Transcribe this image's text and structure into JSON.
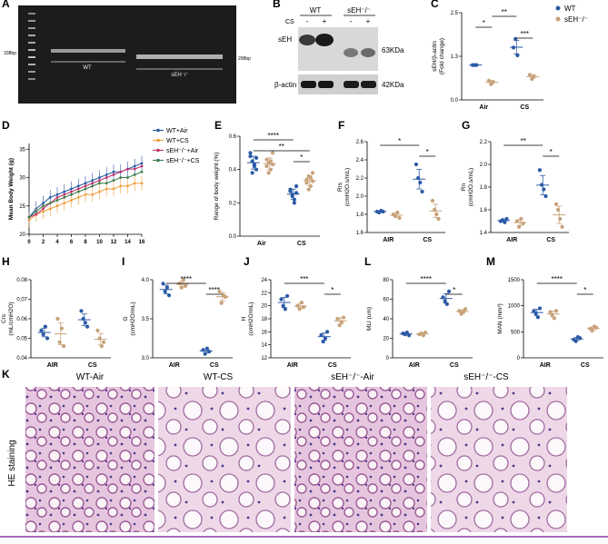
{
  "colors": {
    "wt": "#2b5aa6",
    "sEH": "#c8a27a",
    "wt_cs": "#f0a040",
    "sEH_air": "#c0306a",
    "sEH_cs": "#3a7a4a",
    "purple_rule": "#8a3aa0"
  },
  "panels": {
    "A": {
      "letter": "A",
      "left_label": "338bp",
      "right_label": "298bp",
      "lane1": "WT",
      "lane2": "sEH⁻/⁻"
    },
    "B": {
      "letter": "B",
      "group1": "WT",
      "group2": "sEH⁻/⁻",
      "cs_label": "CS",
      "signs": [
        "-",
        "+",
        "-",
        "+"
      ],
      "row1": "sEH",
      "row2": "β-actin",
      "kda1": "63KDa",
      "kda2": "42KDa"
    },
    "C": {
      "letter": "C"
    },
    "D": {
      "letter": "D"
    },
    "E": {
      "letter": "E"
    },
    "F": {
      "letter": "F"
    },
    "G": {
      "letter": "G"
    },
    "H": {
      "letter": "H"
    },
    "I": {
      "letter": "I"
    },
    "J": {
      "letter": "J"
    },
    "L": {
      "letter": "L"
    },
    "M": {
      "letter": "M"
    },
    "K": {
      "letter": "K",
      "titles": [
        "WT-Air",
        "WT-CS",
        "sEH⁻/⁻-Air",
        "sEH⁻/⁻-CS"
      ],
      "side": "HE staining"
    }
  },
  "chart_data": [
    {
      "id": "C",
      "type": "scatter",
      "ylabel": "sEH/β-actin\n(Fold change)",
      "categories": [
        "Air",
        "CS"
      ],
      "ylim": [
        0,
        2.5
      ],
      "legend": [
        "WT",
        "sEH⁻/⁻"
      ],
      "series": [
        {
          "name": "WT",
          "values": [
            [
              1.0,
              1.0,
              1.0
            ],
            [
              1.5,
              1.75,
              1.28
            ]
          ]
        },
        {
          "name": "sEH⁻/⁻",
          "values": [
            [
              0.55,
              0.45,
              0.52
            ],
            [
              0.72,
              0.6,
              0.68
            ]
          ]
        }
      ],
      "sig": [
        {
          "a": [
            0,
            1
          ],
          "b": [
            1,
            0
          ],
          "label": "**"
        },
        {
          "a": [
            0,
            0
          ],
          "b": [
            0,
            1
          ],
          "label": "*"
        },
        {
          "a": [
            1,
            0
          ],
          "b": [
            1,
            1
          ],
          "label": "***"
        }
      ]
    },
    {
      "id": "D",
      "type": "line",
      "ylabel": "Mean Body Weight (g)",
      "x": [
        0,
        1,
        2,
        3,
        4,
        5,
        6,
        7,
        8,
        9,
        10,
        11,
        12,
        13,
        14,
        15,
        16
      ],
      "xticks": [
        0,
        2,
        4,
        6,
        8,
        10,
        12,
        14,
        16
      ],
      "yticks": [
        20,
        25,
        30,
        35
      ],
      "ylim": [
        20,
        36
      ],
      "series": [
        {
          "name": "WT+Air",
          "values": [
            23,
            24.5,
            25.5,
            26.5,
            27,
            27.5,
            28,
            28.5,
            29,
            29.5,
            30,
            30.5,
            31,
            31,
            31.5,
            32,
            32.5
          ]
        },
        {
          "name": "WT+CS",
          "values": [
            22.5,
            23.5,
            24,
            24.5,
            25,
            25.5,
            26,
            26.5,
            27,
            27,
            27.5,
            28,
            28,
            28.5,
            28.5,
            29,
            29
          ]
        },
        {
          "name": "sEH⁻/⁻+Air",
          "values": [
            23,
            23.5,
            24.5,
            25.5,
            26.5,
            27,
            27.5,
            28,
            28.5,
            29,
            29.5,
            30,
            30.5,
            31,
            31.5,
            31.5,
            32
          ]
        },
        {
          "name": "sEH⁻/⁻+CS",
          "values": [
            23,
            24,
            25,
            25.5,
            26,
            26.5,
            27,
            27.5,
            28,
            28.5,
            29,
            29,
            29.5,
            30,
            30,
            30.5,
            31
          ]
        }
      ]
    },
    {
      "id": "E",
      "type": "scatter",
      "ylabel": "Range of body weight (%)",
      "categories": [
        "Air",
        "CS"
      ],
      "ylim": [
        0,
        0.6
      ],
      "yticks": [
        0,
        0.2,
        0.4,
        0.6
      ],
      "series": [
        {
          "name": "WT",
          "values": [
            [
              0.48,
              0.45,
              0.42,
              0.4,
              0.5,
              0.38,
              0.43,
              0.47
            ],
            [
              0.28,
              0.25,
              0.22,
              0.3,
              0.27,
              0.24,
              0.2,
              0.26
            ]
          ]
        },
        {
          "name": "sEH⁻/⁻",
          "values": [
            [
              0.46,
              0.44,
              0.4,
              0.5,
              0.42,
              0.38,
              0.45,
              0.43
            ],
            [
              0.32,
              0.36,
              0.3,
              0.38,
              0.34,
              0.28,
              0.35,
              0.33
            ]
          ]
        }
      ],
      "sig": [
        {
          "a": [
            0,
            0
          ],
          "b": [
            1,
            0
          ],
          "label": "****"
        },
        {
          "a": [
            0,
            0
          ],
          "b": [
            1,
            1
          ],
          "label": "**"
        },
        {
          "a": [
            1,
            0
          ],
          "b": [
            1,
            1
          ],
          "label": "*"
        }
      ]
    },
    {
      "id": "F",
      "type": "scatter",
      "ylabel": "Rrs\n(cmH2O.s/mL)",
      "categories": [
        "AIR",
        "CS"
      ],
      "ylim": [
        1.6,
        2.6
      ],
      "yticks": [
        1.6,
        1.8,
        2.0,
        2.2,
        2.4,
        2.6
      ],
      "series": [
        {
          "name": "WT",
          "values": [
            [
              1.83,
              1.82,
              1.84,
              1.83
            ],
            [
              2.35,
              2.2,
              2.15,
              2.05
            ]
          ]
        },
        {
          "name": "sEH⁻/⁻",
          "values": [
            [
              1.8,
              1.78,
              1.82,
              1.76
            ],
            [
              1.95,
              1.85,
              1.8,
              1.75
            ]
          ]
        }
      ],
      "sig": [
        {
          "a": [
            0,
            0
          ],
          "b": [
            1,
            0
          ],
          "label": "*"
        },
        {
          "a": [
            1,
            0
          ],
          "b": [
            1,
            1
          ],
          "label": "*"
        }
      ]
    },
    {
      "id": "G",
      "type": "scatter",
      "ylabel": "Rn\n(cmH2O.s/mL)",
      "categories": [
        "AIR",
        "CS"
      ],
      "ylim": [
        1.4,
        2.2
      ],
      "yticks": [
        1.4,
        1.6,
        1.8,
        2.0,
        2.2
      ],
      "series": [
        {
          "name": "WT",
          "values": [
            [
              1.5,
              1.51,
              1.49,
              1.52
            ],
            [
              1.95,
              1.82,
              1.78,
              1.72
            ]
          ]
        },
        {
          "name": "sEH⁻/⁻",
          "values": [
            [
              1.5,
              1.45,
              1.52,
              1.48
            ],
            [
              1.65,
              1.6,
              1.52,
              1.45
            ]
          ]
        }
      ],
      "sig": [
        {
          "a": [
            0,
            0
          ],
          "b": [
            1,
            0
          ],
          "label": "**"
        },
        {
          "a": [
            1,
            0
          ],
          "b": [
            1,
            1
          ],
          "label": "*"
        }
      ]
    },
    {
      "id": "H",
      "type": "scatter",
      "ylabel": "Crs\n(mL/cmH2O)",
      "categories": [
        "AIR",
        "CS"
      ],
      "ylim": [
        0.04,
        0.08
      ],
      "yticks": [
        0.04,
        0.05,
        0.06,
        0.07,
        0.08
      ],
      "series": [
        {
          "name": "WT",
          "values": [
            [
              0.054,
              0.052,
              0.056,
              0.05
            ],
            [
              0.064,
              0.06,
              0.058,
              0.056
            ]
          ]
        },
        {
          "name": "sEH⁻/⁻",
          "values": [
            [
              0.06,
              0.048,
              0.055,
              0.046
            ],
            [
              0.054,
              0.05,
              0.046,
              0.048
            ]
          ]
        }
      ]
    },
    {
      "id": "I",
      "type": "scatter",
      "ylabel": "G\n(cmH2O/mL)",
      "categories": [
        "AIR",
        "CS"
      ],
      "ylim": [
        3.0,
        4.0
      ],
      "yticks": [
        3.0,
        3.5,
        4.0
      ],
      "series": [
        {
          "name": "WT",
          "values": [
            [
              3.95,
              3.85,
              3.9,
              3.8
            ],
            [
              3.1,
              3.05,
              3.12,
              3.08
            ]
          ]
        },
        {
          "name": "sEH⁻/⁻",
          "values": [
            [
              3.95,
              3.9,
              4.0,
              3.92
            ],
            [
              3.85,
              3.7,
              3.8,
              3.78
            ]
          ]
        }
      ],
      "sig": [
        {
          "a": [
            0,
            0
          ],
          "b": [
            1,
            0
          ],
          "label": "****"
        },
        {
          "a": [
            1,
            0
          ],
          "b": [
            1,
            1
          ],
          "label": "****"
        }
      ]
    },
    {
      "id": "J",
      "type": "scatter",
      "ylabel": "H\n(cmH2O/mL)",
      "categories": [
        "AIR",
        "CS"
      ],
      "ylim": [
        12,
        24
      ],
      "yticks": [
        12,
        14,
        16,
        18,
        20,
        22,
        24
      ],
      "series": [
        {
          "name": "WT",
          "values": [
            [
              21,
              20,
              19.5,
              21.5
            ],
            [
              15.5,
              14.5,
              15,
              16
            ]
          ]
        },
        {
          "name": "sEH⁻/⁻",
          "values": [
            [
              20,
              19.5,
              20.5,
              19.8
            ],
            [
              18,
              17,
              17.5,
              18.2
            ]
          ]
        }
      ],
      "sig": [
        {
          "a": [
            0,
            0
          ],
          "b": [
            1,
            0
          ],
          "label": "***"
        },
        {
          "a": [
            1,
            0
          ],
          "b": [
            1,
            1
          ],
          "label": "*"
        }
      ]
    },
    {
      "id": "L",
      "type": "scatter",
      "ylabel": "MLI (um)",
      "categories": [
        "AIR",
        "CS"
      ],
      "ylim": [
        0,
        80
      ],
      "yticks": [
        0,
        20,
        40,
        60,
        80
      ],
      "series": [
        {
          "name": "WT",
          "values": [
            [
              25,
              24,
              26,
              23
            ],
            [
              62,
              58,
              55,
              68
            ]
          ]
        },
        {
          "name": "sEH⁻/⁻",
          "values": [
            [
              24,
              25,
              23,
              26
            ],
            [
              48,
              45,
              47,
              50
            ]
          ]
        }
      ],
      "sig": [
        {
          "a": [
            0,
            0
          ],
          "b": [
            1,
            0
          ],
          "label": "****"
        },
        {
          "a": [
            1,
            0
          ],
          "b": [
            1,
            1
          ],
          "label": "*"
        }
      ]
    },
    {
      "id": "M",
      "type": "scatter",
      "ylabel": "MAN (mm²)",
      "categories": [
        "AIR",
        "CS"
      ],
      "ylim": [
        0,
        1500
      ],
      "yticks": [
        0,
        500,
        1000,
        1500
      ],
      "series": [
        {
          "name": "WT",
          "values": [
            [
              900,
              850,
              780,
              950
            ],
            [
              350,
              320,
              400,
              380
            ]
          ]
        },
        {
          "name": "sEH⁻/⁻",
          "values": [
            [
              880,
              820,
              760,
              900
            ],
            [
              560,
              520,
              600,
              580
            ]
          ]
        }
      ],
      "sig": [
        {
          "a": [
            0,
            0
          ],
          "b": [
            1,
            0
          ],
          "label": "****"
        },
        {
          "a": [
            1,
            0
          ],
          "b": [
            1,
            1
          ],
          "label": "*"
        }
      ]
    }
  ]
}
